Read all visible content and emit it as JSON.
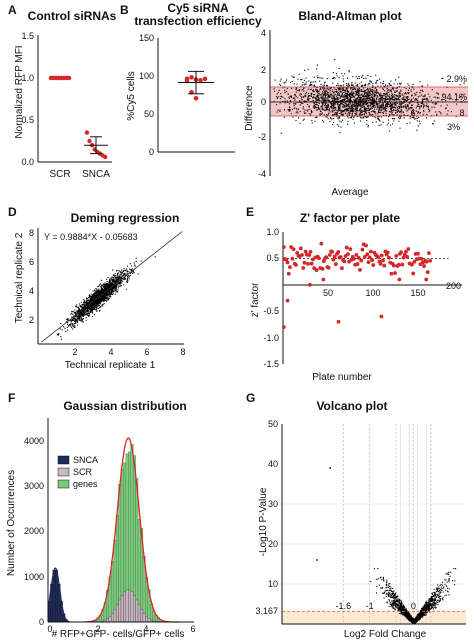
{
  "colors": {
    "red": "#d62728",
    "pink_band": "#f3c6c8",
    "green": "#7fc97f",
    "navy": "#1f2a5a",
    "orange_band": "#fde9d3",
    "dot": "#000000"
  },
  "panel_labels": {
    "a": "A",
    "b": "B",
    "c": "C",
    "d": "D",
    "e": "E",
    "f": "F",
    "g": "G"
  },
  "chart_data": [
    {
      "id": "A",
      "type": "scatter",
      "title": "Control siRNAs",
      "xlabel": "",
      "ylabel": "Normalized RFP MFI",
      "categories": [
        "SCR",
        "SNCA"
      ],
      "ylim": [
        0,
        1.5
      ],
      "yticks": [
        "0.0",
        "0.5",
        "1.0",
        "1.5"
      ],
      "series": [
        {
          "category": "SCR",
          "values": [
            1,
            1,
            1,
            1,
            1,
            1,
            1,
            1
          ]
        },
        {
          "category": "SNCA",
          "values": [
            0.35,
            0.25,
            0.2,
            0.15,
            0.12,
            0.1,
            0.08,
            0.06
          ],
          "mean": 0.2,
          "sd_low": 0.1,
          "sd_high": 0.3
        }
      ]
    },
    {
      "id": "B",
      "type": "scatter",
      "title": "Cy5 siRNA transfection efficiency",
      "title_lines": [
        "Cy5 siRNA",
        "transfection efficiency"
      ],
      "ylabel": "%Cy5 cells",
      "ylim": [
        0,
        150
      ],
      "yticks": [
        "0",
        "50",
        "100",
        "150"
      ],
      "values": [
        98,
        100,
        97,
        96,
        98,
        95,
        80,
        72
      ],
      "mean": 93,
      "sd_low": 78,
      "sd_high": 108
    },
    {
      "id": "C",
      "type": "scatter",
      "title": "Bland-Altman plot",
      "xlabel": "Average",
      "ylabel": "Difference",
      "xlim": [
        0,
        8
      ],
      "ylim": [
        -4,
        4
      ],
      "yticks": [
        "-4",
        "-2",
        "0",
        "2",
        "4"
      ],
      "xticks": [
        "6",
        "8"
      ],
      "band": [
        -1,
        1.5
      ],
      "annotations": [
        "2.9%",
        "94.1%",
        "3%"
      ]
    },
    {
      "id": "D",
      "type": "scatter",
      "title": "Deming regression",
      "xlabel": "Technical replicate 1",
      "ylabel": "Technical replicate 2",
      "xlim": [
        0,
        8
      ],
      "ylim": [
        0,
        8
      ],
      "xticks": [
        "2",
        "4",
        "6",
        "8"
      ],
      "yticks": [
        "2",
        "4",
        "6",
        "8"
      ],
      "equation": "Y = 0.9884*X - 0.05683",
      "slope": 0.9884,
      "intercept": -0.05683
    },
    {
      "id": "E",
      "type": "scatter",
      "title": "Z' factor per plate",
      "xlabel": "Plate number",
      "ylabel": "z' factor",
      "xlim": [
        0,
        200
      ],
      "ylim": [
        -1.5,
        1.0
      ],
      "xticks": [
        "50",
        "100",
        "150",
        "200"
      ],
      "yticks": [
        "1.0",
        "0.5",
        "-0.5",
        "-1.0",
        "-1.5"
      ],
      "reference_y": 0.5,
      "outliers": [
        [
          1,
          -0.8
        ],
        [
          5,
          -0.3
        ],
        [
          62,
          -0.7
        ],
        [
          110,
          -0.6
        ],
        [
          30,
          0.0
        ],
        [
          45,
          0.1
        ],
        [
          130,
          0.1
        ],
        [
          160,
          0.1
        ]
      ]
    },
    {
      "id": "F",
      "type": "bar",
      "title": "Gaussian distribution",
      "xlabel": "# RFP+GFP- cells/GFP+ cells",
      "ylabel": "Number of Occurrences",
      "xlim": [
        0,
        6
      ],
      "ylim": [
        0,
        4500
      ],
      "xticks": [
        "0",
        "2",
        "4",
        "6"
      ],
      "yticks": [
        "0",
        "1000",
        "2000",
        "3000",
        "4000"
      ],
      "legend": [
        "SNCA",
        "SCR",
        "genes"
      ],
      "genes_mean": 3.3,
      "genes_sd": 0.45,
      "genes_peak": 4100,
      "scr_mean": 3.3,
      "scr_sd": 0.4,
      "scr_peak": 720,
      "snca_mean": 0.3,
      "snca_sd": 0.18,
      "snca_peak": 1200
    },
    {
      "id": "G",
      "type": "scatter",
      "title": "Volcano plot",
      "xlabel": "Log2 Fold Change",
      "ylabel": "-Log10 P-Value",
      "xlim": [
        -3,
        1.2
      ],
      "ylim": [
        0,
        50
      ],
      "xticks": [
        "-1.6",
        "-1",
        "-0.4",
        "0",
        "0.4"
      ],
      "yticks": [
        "10",
        "20",
        "30",
        "40",
        "50"
      ],
      "threshold": 3.167,
      "threshold_label": "3.167",
      "outliers": [
        [
          -1.9,
          39
        ],
        [
          -2.2,
          16
        ]
      ]
    }
  ]
}
